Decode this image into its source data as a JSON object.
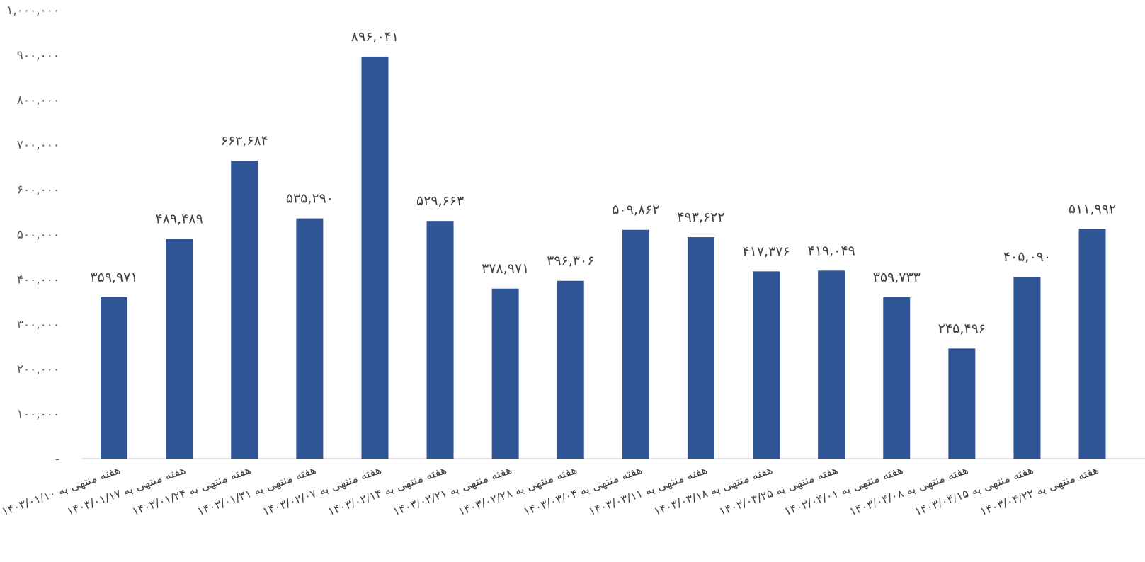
{
  "chart_data": {
    "type": "bar",
    "title": "",
    "xlabel": "",
    "ylabel": "",
    "ylim": [
      0,
      1000000
    ],
    "grid": false,
    "legend": "none",
    "bar_color": "#2F5597",
    "y_ticks": [
      "-",
      "۱۰۰,۰۰۰",
      "۲۰۰,۰۰۰",
      "۳۰۰,۰۰۰",
      "۴۰۰,۰۰۰",
      "۵۰۰,۰۰۰",
      "۶۰۰,۰۰۰",
      "۷۰۰,۰۰۰",
      "۸۰۰,۰۰۰",
      "۹۰۰,۰۰۰",
      "۱,۰۰۰,۰۰۰"
    ],
    "categories": [
      "هفته منتهی به ۱۴۰۳/۰۱/۱۰",
      "هفته منتهی به ۱۴۰۳/۰۱/۱۷",
      "هفته منتهی به ۱۴۰۳/۰۱/۲۴",
      "هفته منتهی به ۱۴۰۳/۰۱/۳۱",
      "هفته منتهی به ۱۴۰۳/۰۲/۰۷",
      "هفته منتهی به ۱۴۰۳/۰۲/۱۴",
      "هفته منتهی به ۱۴۰۳/۰۲/۲۱",
      "هفته منتهی به ۱۴۰۳/۰۲/۲۸",
      "هفته منتهی به ۱۴۰۳/۰۳/۰۴",
      "هفته منتهی به ۱۴۰۳/۰۳/۱۱",
      "هفته منتهی به ۱۴۰۳/۰۳/۱۸",
      "هفته منتهی به ۱۴۰۳/۰۳/۲۵",
      "هفته منتهی به ۱۴۰۳/۰۴/۰۱",
      "هفته منتهی به ۱۴۰۳/۰۴/۰۸",
      "هفته منتهی به ۱۴۰۳/۰۴/۱۵",
      "هفته منتهی به ۱۴۰۳/۰۴/۲۲"
    ],
    "values": [
      359971,
      489489,
      663684,
      535290,
      896041,
      529663,
      378971,
      396306,
      509862,
      493622,
      417376,
      419049,
      359733,
      245496,
      405090,
      511992
    ],
    "value_labels": [
      "۳۵۹,۹۷۱",
      "۴۸۹,۴۸۹",
      "۶۶۳,۶۸۴",
      "۵۳۵,۲۹۰",
      "۸۹۶,۰۴۱",
      "۵۲۹,۶۶۳",
      "۳۷۸,۹۷۱",
      "۳۹۶,۳۰۶",
      "۵۰۹,۸۶۲",
      "۴۹۳,۶۲۲",
      "۴۱۷,۳۷۶",
      "۴۱۹,۰۴۹",
      "۳۵۹,۷۳۳",
      "۲۴۵,۴۹۶",
      "۴۰۵,۰۹۰",
      "۵۱۱,۹۹۲"
    ]
  }
}
